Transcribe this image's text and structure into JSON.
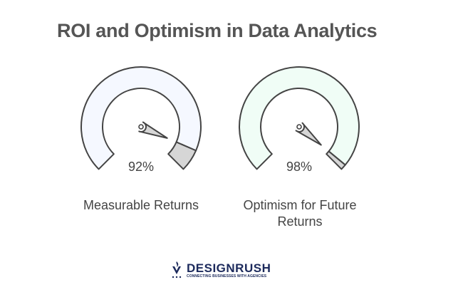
{
  "title": "ROI and Optimism in Data Analytics",
  "gauges": [
    {
      "label": "Measurable Returns",
      "value_text": "92%",
      "value": 92,
      "fill_color": "#f5f8ff"
    },
    {
      "label": "Optimism for Future Returns",
      "value_text": "98%",
      "value": 98,
      "fill_color": "#f0fdf6"
    }
  ],
  "colors": {
    "stroke": "#444444",
    "remainder": "#d6d6d6",
    "needle": "#d6d6d6"
  },
  "logo": {
    "name": "DESIGNRUSH",
    "tagline": "CONNECTING BUSINESSES WITH AGENCIES"
  }
}
